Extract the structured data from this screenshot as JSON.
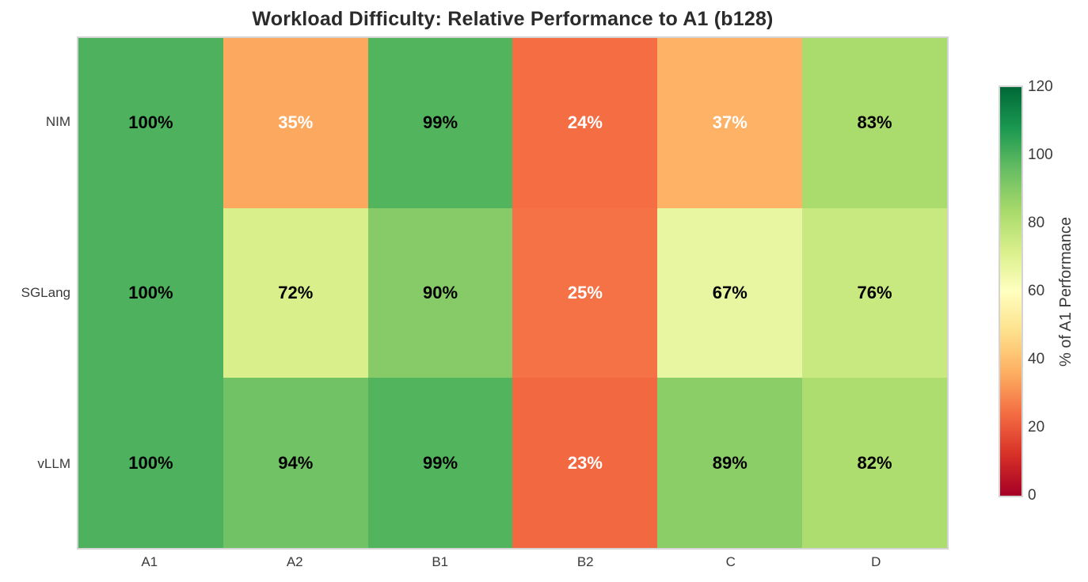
{
  "page": {
    "background": "#ffffff",
    "frame_color": "#d4d4d4",
    "label_text_color": "#3a3a3a",
    "title_color": "#2b2b2b"
  },
  "chart_data": {
    "type": "heatmap",
    "title": "Workload Difficulty: Relative Performance to A1 (b128)",
    "rows": [
      "NIM",
      "SGLang",
      "vLLM"
    ],
    "columns": [
      "A1",
      "A2",
      "B1",
      "B2",
      "C",
      "D"
    ],
    "values": [
      [
        100,
        35,
        99,
        24,
        37,
        83
      ],
      [
        100,
        72,
        90,
        25,
        67,
        76
      ],
      [
        100,
        94,
        99,
        23,
        89,
        82
      ]
    ],
    "annotation_suffix": "%",
    "vmin": 0,
    "vmax": 120,
    "colorbar": {
      "label": "% of A1 Performance",
      "ticks": [
        0,
        20,
        40,
        60,
        80,
        100,
        120
      ]
    },
    "colormap_name": "RdYlGn",
    "colormap_stops": [
      "#a50026",
      "#d73027",
      "#f46d43",
      "#fdae61",
      "#fee08b",
      "#ffffbf",
      "#d9ef8b",
      "#a6d96a",
      "#66bd63",
      "#1a9850",
      "#006837"
    ],
    "annotation_colors": {
      "light": "#ffffff",
      "dark": "#000000",
      "light_text_max_value": 50
    },
    "legend_position": "right",
    "grid": false
  }
}
